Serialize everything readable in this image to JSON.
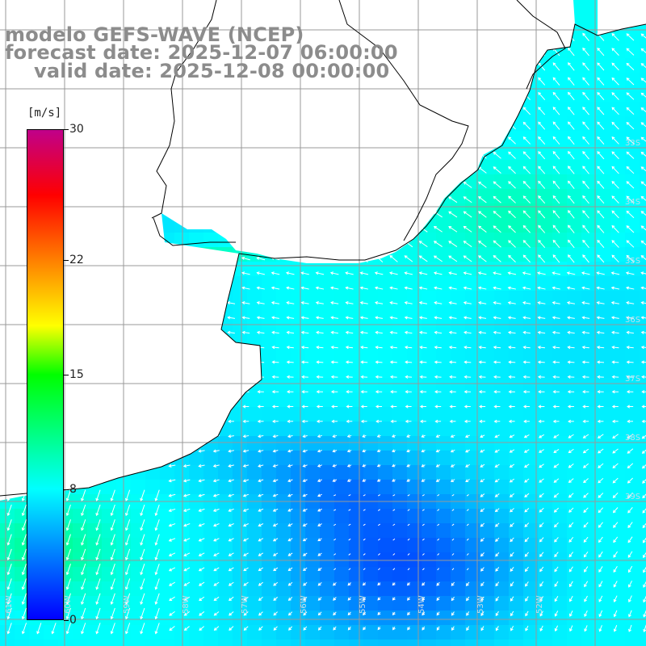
{
  "title": {
    "line1": "modelo GEFS-WAVE (NCEP)",
    "line2": "forecast date: 2025-12-07 06:00:00",
    "line3": "valid date: 2025-12-08 00:00:00"
  },
  "colorbar": {
    "unit": "[m/s]",
    "min": 0,
    "max": 30,
    "ticks": [
      {
        "value": 30,
        "label": "30"
      },
      {
        "value": 22,
        "label": "22"
      },
      {
        "value": 15,
        "label": "15"
      },
      {
        "value": 8,
        "label": "8"
      },
      {
        "value": 0,
        "label": "0"
      }
    ],
    "stops": [
      {
        "value": 0,
        "color": "#0000ff"
      },
      {
        "value": 8,
        "color": "#00ffff"
      },
      {
        "value": 15,
        "color": "#00ff00"
      },
      {
        "value": 18,
        "color": "#ffff00"
      },
      {
        "value": 22,
        "color": "#ff8000"
      },
      {
        "value": 26,
        "color": "#ff0000"
      },
      {
        "value": 30,
        "color": "#c0008a"
      }
    ]
  },
  "map": {
    "lon_labels": [
      "61W",
      "60W",
      "59W",
      "58W",
      "57W",
      "56W",
      "55W",
      "54W",
      "53W",
      "52W"
    ],
    "lat_labels": [
      "33S",
      "34S",
      "35S",
      "36S",
      "37S",
      "38S",
      "39S"
    ],
    "land_color": "#ffffff",
    "grid_color": "#999999",
    "arrow_color": "#ffffff",
    "coast_color": "#000000"
  }
}
